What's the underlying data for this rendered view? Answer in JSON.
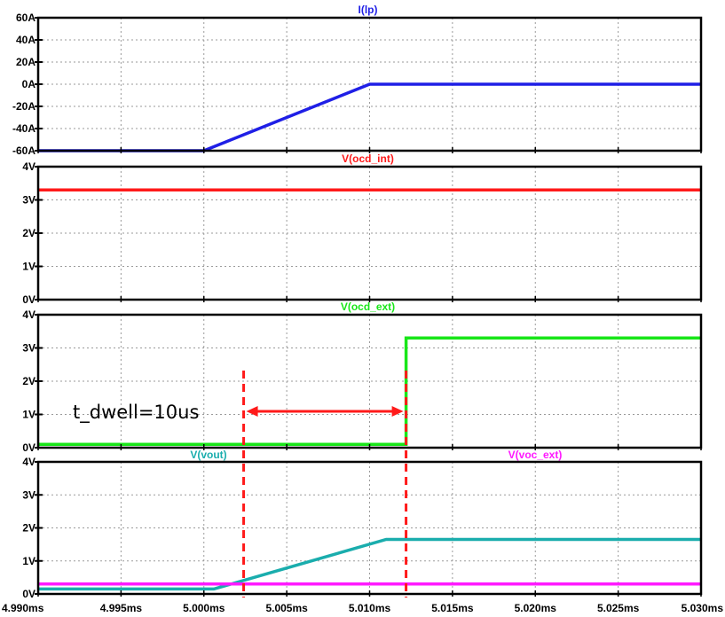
{
  "chart_data": [
    {
      "type": "line",
      "title": "I(lp)",
      "title_color": "#1f1fe6",
      "ylim": [
        -60,
        60
      ],
      "yticks": [
        60,
        40,
        20,
        0,
        -20,
        -40,
        -60
      ],
      "ytick_labels": [
        "60A",
        "40A",
        "20A",
        "0A",
        "-20A",
        "-40A",
        "-60A"
      ],
      "series": [
        {
          "name": "I(lp)",
          "color": "#1f1fe6",
          "x": [
            4.99,
            5.0,
            5.01,
            5.03
          ],
          "y": [
            -60,
            -60,
            0,
            0
          ]
        }
      ]
    },
    {
      "type": "line",
      "title": "V(ocd_int)",
      "title_color": "#ff1a1a",
      "ylim": [
        0,
        4
      ],
      "yticks": [
        4,
        3,
        2,
        1,
        0
      ],
      "ytick_labels": [
        "4V",
        "3V",
        "2V",
        "1V",
        "0V"
      ],
      "series": [
        {
          "name": "V(ocd_int)",
          "color": "#ff1a1a",
          "x": [
            4.99,
            5.03
          ],
          "y": [
            3.3,
            3.3
          ]
        }
      ]
    },
    {
      "type": "line",
      "title": "V(ocd_ext)",
      "title_color": "#19e619",
      "ylim": [
        0,
        4
      ],
      "yticks": [
        4,
        3,
        2,
        1,
        0
      ],
      "ytick_labels": [
        "4V",
        "3V",
        "2V",
        "1V",
        "0V"
      ],
      "series": [
        {
          "name": "V(ocd_ext)",
          "color": "#19e619",
          "x": [
            4.99,
            5.0122,
            5.0122,
            5.03
          ],
          "y": [
            0.1,
            0.1,
            3.3,
            3.3
          ]
        }
      ],
      "annotation": {
        "text": "t_dwell=10us",
        "marker_x": [
          5.0024,
          5.0122
        ],
        "color": "#ff1a1a"
      }
    },
    {
      "type": "line",
      "titles": [
        {
          "text": "V(vout)",
          "color": "#1aadad"
        },
        {
          "text": "V(voc_ext)",
          "color": "#ff1aff"
        }
      ],
      "ylim": [
        0,
        4
      ],
      "yticks": [
        4,
        3,
        2,
        1,
        0
      ],
      "ytick_labels": [
        "4V",
        "3V",
        "2V",
        "1V",
        "0V"
      ],
      "series": [
        {
          "name": "V(vout)",
          "color": "#1aadad",
          "x": [
            4.99,
            5.0006,
            5.011,
            5.03
          ],
          "y": [
            0.15,
            0.15,
            1.65,
            1.65
          ]
        },
        {
          "name": "V(voc_ext)",
          "color": "#ff1aff",
          "x": [
            4.99,
            5.03
          ],
          "y": [
            0.3,
            0.3
          ]
        }
      ]
    }
  ],
  "x_axis": {
    "xlim": [
      4.99,
      5.03
    ],
    "ticks": [
      4.99,
      4.995,
      5.0,
      5.005,
      5.01,
      5.015,
      5.02,
      5.025,
      5.03
    ],
    "tick_labels": [
      "4.990ms",
      "4.995ms",
      "5.000ms",
      "5.005ms",
      "5.010ms",
      "5.015ms",
      "5.020ms",
      "5.025ms",
      "5.030ms"
    ]
  },
  "grid": true,
  "cursor_lines": {
    "x": [
      5.0024,
      5.0122
    ],
    "color": "#ff1a1a",
    "style": "dashed"
  }
}
